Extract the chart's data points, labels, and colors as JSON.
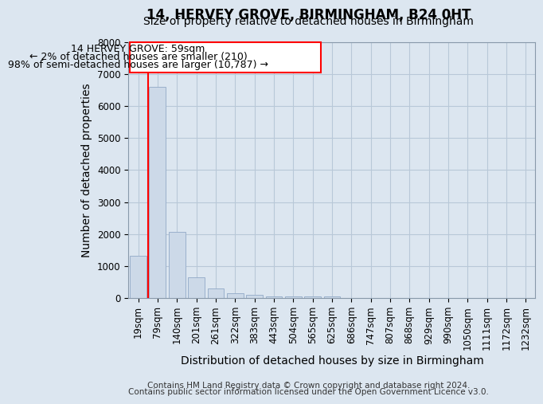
{
  "title": "14, HERVEY GROVE, BIRMINGHAM, B24 0HT",
  "subtitle": "Size of property relative to detached houses in Birmingham",
  "xlabel": "Distribution of detached houses by size in Birmingham",
  "ylabel": "Number of detached properties",
  "categories": [
    "19sqm",
    "79sqm",
    "140sqm",
    "201sqm",
    "261sqm",
    "322sqm",
    "383sqm",
    "443sqm",
    "504sqm",
    "565sqm",
    "625sqm",
    "686sqm",
    "747sqm",
    "807sqm",
    "868sqm",
    "929sqm",
    "990sqm",
    "1050sqm",
    "1111sqm",
    "1172sqm",
    "1232sqm"
  ],
  "values": [
    1320,
    6600,
    2080,
    650,
    300,
    155,
    105,
    60,
    55,
    55,
    55,
    0,
    0,
    0,
    0,
    0,
    0,
    0,
    0,
    0,
    0
  ],
  "bar_color": "#ccd9e8",
  "bar_edge_color": "#9ab0cc",
  "ylim": [
    0,
    8000
  ],
  "yticks": [
    0,
    1000,
    2000,
    3000,
    4000,
    5000,
    6000,
    7000,
    8000
  ],
  "annotation_title": "14 HERVEY GROVE: 59sqm",
  "annotation_line1": "← 2% of detached houses are smaller (210)",
  "annotation_line2": "98% of semi-detached houses are larger (10,787) →",
  "footer_line1": "Contains HM Land Registry data © Crown copyright and database right 2024.",
  "footer_line2": "Contains public sector information licensed under the Open Government Licence v3.0.",
  "bg_color": "#dce6f0",
  "plot_bg_color": "#dce6f0",
  "grid_color": "#b8c8d8",
  "title_fontsize": 12,
  "subtitle_fontsize": 10,
  "axis_label_fontsize": 10,
  "tick_fontsize": 8.5,
  "annotation_fontsize": 9,
  "footer_fontsize": 7.5
}
